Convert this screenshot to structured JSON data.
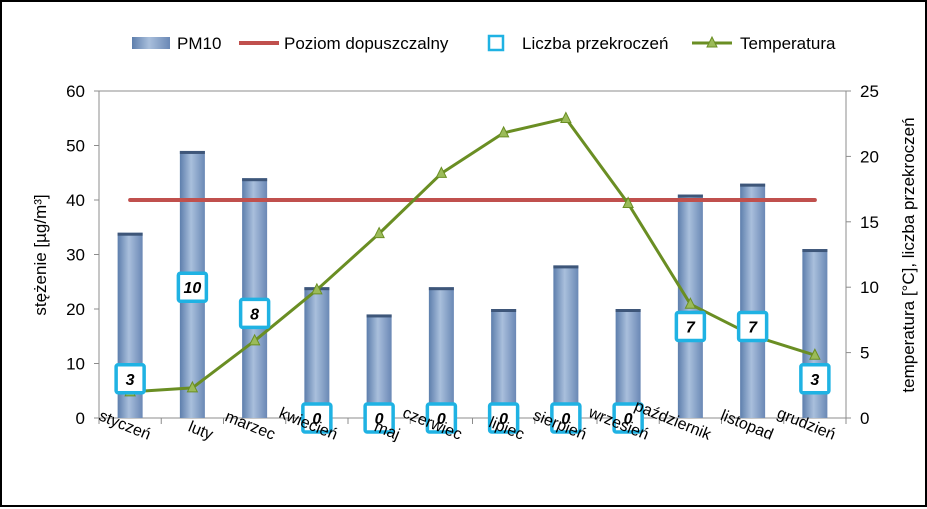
{
  "chart_data": {
    "type": "bar",
    "categories": [
      "styczeń",
      "luty",
      "marzec",
      "kwiecień",
      "maj",
      "czerwiec",
      "lipiec",
      "sierpień",
      "wrzesień",
      "październik",
      "listopad",
      "grudzień"
    ],
    "series": [
      {
        "name": "PM10",
        "kind": "bar",
        "axis": "left",
        "color": "#7f9ac2",
        "values": [
          34,
          49,
          44,
          24,
          19,
          24,
          20,
          28,
          20,
          41,
          43,
          31
        ]
      },
      {
        "name": "Poziom dopuszczalny",
        "kind": "line",
        "axis": "left",
        "color": "#c0504d",
        "values": [
          40,
          40,
          40,
          40,
          40,
          40,
          40,
          40,
          40,
          40,
          40,
          40
        ]
      },
      {
        "name": "Liczba przekroczeń",
        "kind": "marker",
        "axis": "right",
        "color": "#1fb2e3",
        "values": [
          3,
          10,
          8,
          0,
          0,
          0,
          0,
          0,
          0,
          7,
          7,
          3
        ],
        "labels": [
          "3",
          "10",
          "8",
          "0",
          "0",
          "0",
          "0",
          "0",
          "0",
          "7",
          "7",
          "3"
        ]
      },
      {
        "name": "Temperatura",
        "kind": "line",
        "axis": "right",
        "color": "#6a8e23",
        "values": [
          2.0,
          2.3,
          5.9,
          9.8,
          14.1,
          18.7,
          21.8,
          22.9,
          16.4,
          8.7,
          6.3,
          4.8
        ]
      }
    ],
    "ylabel": "stężenie [µg/m³]",
    "y2label": "temperatura [°C],  liczba przekroczeń",
    "ylim": [
      0,
      60
    ],
    "y2lim": [
      0,
      25
    ],
    "yticks": [
      "0",
      "10",
      "20",
      "30",
      "40",
      "50",
      "60"
    ],
    "y2ticks": [
      "0",
      "5",
      "10",
      "15",
      "20",
      "25"
    ],
    "grid": false,
    "legend": "top"
  }
}
